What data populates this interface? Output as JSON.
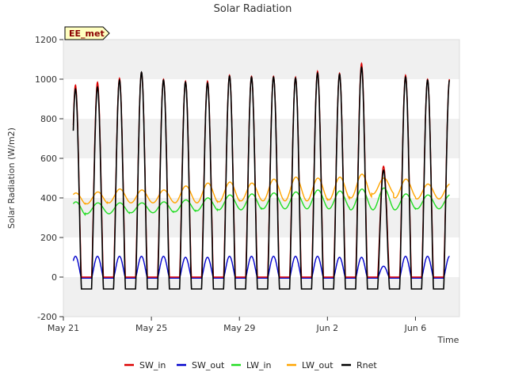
{
  "chart_data": {
    "type": "line",
    "title": "Solar Radiation",
    "xlabel": "Time",
    "ylabel": "Solar Radiation (W/m2)",
    "badge": "EE_met",
    "xlim_days": [
      0,
      18.0
    ],
    "ylim": [
      -200,
      1200
    ],
    "y_ticks": [
      -200,
      0,
      200,
      400,
      600,
      800,
      1000,
      1200
    ],
    "x_ticks": [
      {
        "day": 0,
        "label": "May 21"
      },
      {
        "day": 4,
        "label": "May 25"
      },
      {
        "day": 8,
        "label": "May 29"
      },
      {
        "day": 12,
        "label": "Jun 2"
      },
      {
        "day": 16,
        "label": "Jun 6"
      }
    ],
    "grid": "horizontal bands",
    "legend_position": "bottom",
    "colors": {
      "SW_in": "#dd0000",
      "SW_out": "#0000cc",
      "LW_in": "#22dd22",
      "LW_out": "#ffa500",
      "Rnet": "#000000",
      "band": "#f0f0f0",
      "badge_fill": "#ffffc0"
    },
    "series": [
      {
        "name": "SW_in",
        "daily_peak": [
          970,
          985,
          1005,
          1035,
          1000,
          990,
          990,
          1020,
          1015,
          1015,
          1010,
          1040,
          1030,
          1080,
          560,
          1020,
          1000
        ]
      },
      {
        "name": "SW_out",
        "baseline": -5,
        "daily_peak": [
          110,
          110,
          110,
          110,
          110,
          105,
          105,
          110,
          110,
          110,
          110,
          110,
          105,
          105,
          60,
          110,
          110
        ]
      },
      {
        "name": "LW_in",
        "daily_min": [
          310,
          320,
          320,
          325,
          325,
          330,
          335,
          340,
          340,
          345,
          345,
          345,
          345,
          340,
          340,
          340,
          345
        ],
        "daily_max": [
          380,
          375,
          375,
          375,
          380,
          390,
          400,
          415,
          420,
          425,
          430,
          440,
          435,
          445,
          450,
          420,
          415
        ]
      },
      {
        "name": "LW_out",
        "daily_min": [
          365,
          370,
          375,
          375,
          375,
          375,
          375,
          380,
          385,
          385,
          385,
          385,
          390,
          400,
          420,
          400,
          395
        ],
        "daily_max": [
          425,
          430,
          445,
          440,
          440,
          460,
          475,
          480,
          475,
          495,
          505,
          500,
          505,
          520,
          500,
          495,
          470
        ]
      },
      {
        "name": "Rnet",
        "night": -60,
        "daily_peak": [
          950,
          960,
          995,
          1035,
          995,
          985,
          980,
          1015,
          1010,
          1010,
          1005,
          1030,
          1025,
          1060,
          540,
          1010,
          995
        ]
      }
    ]
  }
}
